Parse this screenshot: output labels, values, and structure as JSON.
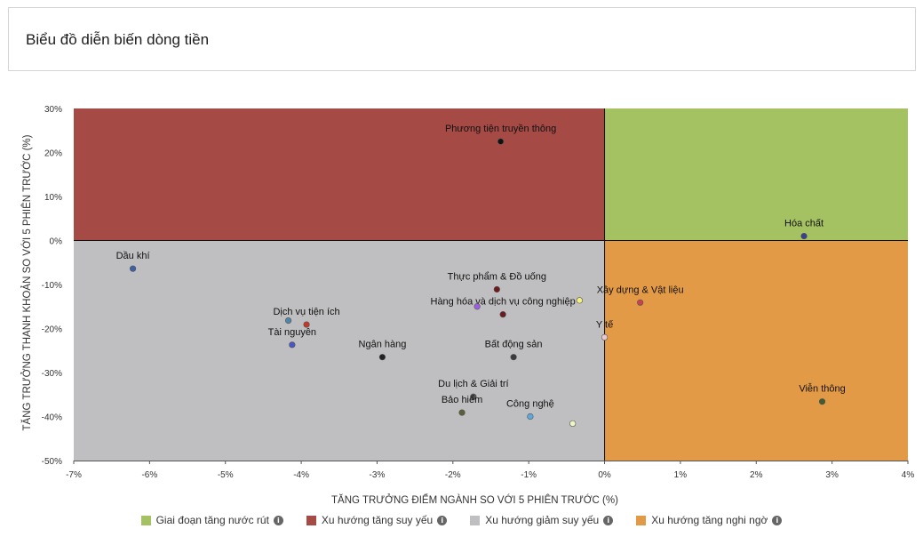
{
  "header": {
    "title": "Biểu đồ diễn biến dòng tiền"
  },
  "chart_data": {
    "type": "scatter",
    "xlabel": "TĂNG TRƯỞNG ĐIỂM NGÀNH SO VỚI 5 PHIÊN TRƯỚC (%)",
    "ylabel": "TĂNG TRƯỞNG THANH KHOẢN SO VỚI 5 PHIÊN TRƯỚC (%)",
    "xlim": [
      -7,
      4
    ],
    "ylim": [
      -50,
      30
    ],
    "x_ticks": [
      -7,
      -6,
      -5,
      -4,
      -3,
      -2,
      -1,
      0,
      1,
      2,
      3,
      4
    ],
    "y_ticks": [
      30,
      20,
      10,
      0,
      -10,
      -20,
      -30,
      -40,
      -50
    ],
    "x_tick_labels": [
      "-7%",
      "-6%",
      "-5%",
      "-4%",
      "-3%",
      "-2%",
      "-1%",
      "0%",
      "1%",
      "2%",
      "3%",
      "4%"
    ],
    "y_tick_labels": [
      "30%",
      "20%",
      "10%",
      "0%",
      "-10%",
      "-20%",
      "-30%",
      "-40%",
      "-50%"
    ],
    "quadrants": [
      {
        "name": "Giai đoạn tăng nước rút",
        "color": "#a5c262",
        "x": [
          0,
          4
        ],
        "y": [
          0,
          30
        ]
      },
      {
        "name": "Xu hướng tăng suy yếu",
        "color": "#a64a46",
        "x": [
          -7,
          0
        ],
        "y": [
          0,
          30
        ]
      },
      {
        "name": "Xu hướng giảm suy yếu",
        "color": "#bfbfc1",
        "x": [
          -7,
          0
        ],
        "y": [
          -50,
          0
        ]
      },
      {
        "name": "Xu hướng tăng nghi ngờ",
        "color": "#e39a46",
        "x": [
          0,
          4
        ],
        "y": [
          -50,
          0
        ]
      }
    ],
    "points": [
      {
        "label": "Phương tiện truyền thông",
        "x": -1.37,
        "y": 22.5,
        "color": "#111111",
        "label_pos": "above"
      },
      {
        "label": "Hóa chất",
        "x": 2.63,
        "y": 1.0,
        "color": "#3c3f8f",
        "label_pos": "above"
      },
      {
        "label": "Dầu khí",
        "x": -6.22,
        "y": -6.4,
        "color": "#3c5fa8",
        "label_pos": "above"
      },
      {
        "label": "Thực phẩm & Đồ uống",
        "x": -1.42,
        "y": -11.1,
        "color": "#6e1a1a",
        "label_pos": "above"
      },
      {
        "label": "Xây dựng & Vật liệu",
        "x": 0.47,
        "y": -14.1,
        "color": "#c8414e",
        "label_pos": "above"
      },
      {
        "label": "Hàng hóa và dịch vụ công nghiệp",
        "x": -1.34,
        "y": -16.8,
        "color": "#6e1a22",
        "label_pos": "above"
      },
      {
        "label": "",
        "x": -1.68,
        "y": -15.0,
        "color": "#9b5fe0",
        "label_pos": "none"
      },
      {
        "label": "",
        "x": -0.33,
        "y": -13.6,
        "color": "#f4f27a",
        "label_pos": "none"
      },
      {
        "label": "Dịch vụ tiện ích",
        "x": -3.93,
        "y": -19.1,
        "color": "#c0392b",
        "label_pos": "above"
      },
      {
        "label": "",
        "x": -4.17,
        "y": -18.2,
        "color": "#4f86a8",
        "label_pos": "none"
      },
      {
        "label": "Tài nguyên",
        "x": -4.12,
        "y": -23.7,
        "color": "#4a55c8",
        "label_pos": "above"
      },
      {
        "label": "Y tế",
        "x": 0.0,
        "y": -22.0,
        "color": "#e8c9cf",
        "label_pos": "above"
      },
      {
        "label": "Ngân hàng",
        "x": -2.93,
        "y": -26.5,
        "color": "#222222",
        "label_pos": "above"
      },
      {
        "label": "Bất động sản",
        "x": -1.2,
        "y": -26.5,
        "color": "#3b3b3b",
        "label_pos": "above"
      },
      {
        "label": "Du lịch & Giải trí",
        "x": -1.73,
        "y": -35.5,
        "color": "#555555",
        "label_pos": "above"
      },
      {
        "label": "Bảo hiểm",
        "x": -1.88,
        "y": -39.1,
        "color": "#5b5f3a",
        "label_pos": "above"
      },
      {
        "label": "Công nghệ",
        "x": -0.98,
        "y": -40.0,
        "color": "#5fa8dc",
        "label_pos": "above"
      },
      {
        "label": "",
        "x": -0.42,
        "y": -41.6,
        "color": "#eef7c2",
        "label_pos": "none"
      },
      {
        "label": "Viễn thông",
        "x": 2.87,
        "y": -36.6,
        "color": "#3e5e32",
        "label_pos": "above"
      }
    ]
  },
  "legend": {
    "items": [
      {
        "label": "Giai đoạn tăng nước rút",
        "color": "#a5c262",
        "info_icon": "info-icon"
      },
      {
        "label": "Xu hướng tăng suy yếu",
        "color": "#a64a46",
        "info_icon": "info-icon"
      },
      {
        "label": "Xu hướng giảm suy yếu",
        "color": "#bfbfc1",
        "info_icon": "info-icon"
      },
      {
        "label": "Xu hướng tăng nghi ngờ",
        "color": "#e39a46",
        "info_icon": "info-icon"
      }
    ]
  }
}
